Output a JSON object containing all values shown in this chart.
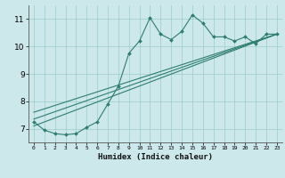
{
  "xlabel": "Humidex (Indice chaleur)",
  "bg_color": "#cce8ea",
  "grid_color": "#99cccc",
  "line_color": "#2d7d6e",
  "xlim": [
    -0.5,
    23.5
  ],
  "ylim": [
    6.5,
    11.5
  ],
  "yticks": [
    7,
    8,
    9,
    10,
    11
  ],
  "xticks": [
    0,
    1,
    2,
    3,
    4,
    5,
    6,
    7,
    8,
    9,
    10,
    11,
    12,
    13,
    14,
    15,
    16,
    17,
    18,
    19,
    20,
    21,
    22,
    23
  ],
  "curve1_x": [
    0,
    1,
    2,
    3,
    4,
    5,
    6,
    7,
    8,
    9,
    10,
    11,
    12,
    13,
    14,
    15,
    16,
    17,
    18,
    19,
    20,
    21,
    22,
    23
  ],
  "curve1_y": [
    7.25,
    6.95,
    6.82,
    6.78,
    6.82,
    7.05,
    7.25,
    7.9,
    8.55,
    9.75,
    10.2,
    11.05,
    10.45,
    10.25,
    10.55,
    11.15,
    10.85,
    10.35,
    10.35,
    10.2,
    10.35,
    10.1,
    10.45,
    10.45
  ],
  "line1_y_start": 7.1,
  "line1_y_end": 10.45,
  "line2_y_start": 7.35,
  "line2_y_end": 10.45,
  "line3_y_start": 7.6,
  "line3_y_end": 10.45,
  "line_x_start": 0,
  "line_x_end": 23
}
